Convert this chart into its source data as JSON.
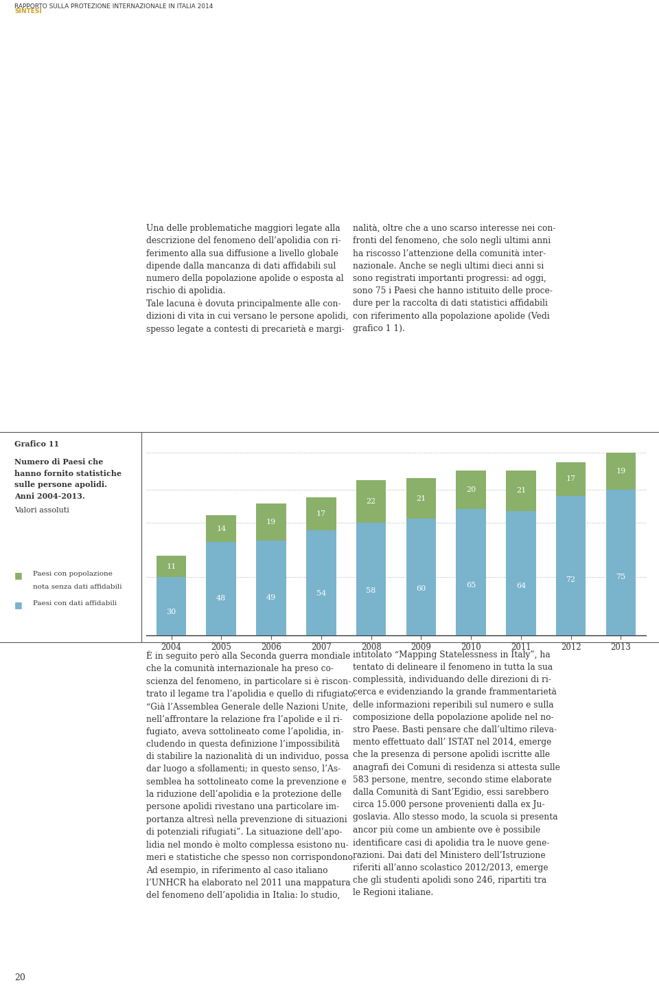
{
  "years": [
    2004,
    2005,
    2006,
    2007,
    2008,
    2009,
    2010,
    2011,
    2012,
    2013
  ],
  "blue_values": [
    30,
    48,
    49,
    54,
    58,
    60,
    65,
    64,
    72,
    75
  ],
  "green_values": [
    11,
    14,
    19,
    17,
    22,
    21,
    20,
    21,
    17,
    19
  ],
  "blue_color": "#7ab3cc",
  "green_color": "#8ab06a",
  "title": "Grafico 11",
  "subtitle_bold": "Numero di Paesi che\nhannofornito statistiche\nsulle persone apolidi.\nAnni 2004-2013.",
  "subtitle_normal": "Valori assoluti",
  "legend_label1a": "Paesi con popolazione",
  "legend_label1b": "nota senza dati affidabili",
  "legend_label2": "Paesi con dati affidabili",
  "header_line1": "RAPPORTO SULLA PROTEZIONE INTERNAZIONALE IN ITALIA 2014",
  "header_line2": "SINTESI",
  "header_color1": "#333333",
  "header_color2": "#c8a020",
  "dotted_line_color": "#aaaaaa",
  "axis_color": "#333333",
  "bg_color": "#ffffff",
  "text_color": "#333333",
  "bar_width": 0.6,
  "top_text_left": "Una delle problematiche maggiori legate alla\ndescrizione del fenomeno dell’apolidia con ri-\nferimento alla sua diffusione a livello globale\ndipende dalla mancanza di dati affidabili sul\nnumero della popolazione apolide o esposta al\nrischio di apolidia.\nTale lacuna è dovuta principalmente alle con-\ndizioni di vita in cui versano le persone apolidi,\nspesso legate a contesti di precarietà e margi-",
  "top_text_right": "nalità, oltre che a uno scarso interesse nei con-\nfronti del fenomeno, che solo negli ultimi anni\nha riscosso l’attenzione della comunità inter-\nnazionale. Anche se negli ultimi dieci anni si\nsono registrati importanti progressi: ad oggi,\nsono 75 i Paesi che hanno istituito delle proce-\ndure per la raccolta di dati statistici affidabili\ncon riferimento alla popolazione apolide (Vedi\ngrafico 1 1).",
  "bottom_text_left": "È in seguito però alla Seconda guerra mondiale\nche la comunità internazionale ha preso co-\nscienza del fenomeno, in particolare si è riscon-\ntrato il legame tra l’apolidia e quello di rifugiato.\n“Già l’Assemblea Generale delle Nazioni Unite,\nnell’affrontare la relazione fra l’apolide e il ri-\nfugiato, aveva sottolineato come l’apolidia, in-\ncludendo in questa definizione l’impossibilità\ndi stabilire la nazionalità di un individuo, possa\ndar luogo a sfollamenti; in questo senso, l’As-\nsemblea ha sottolineato come la prevenzione e\nla riduzione dell’apolidia e la protezione delle\npersone apolidi rivestano una particolare im-\nportanza altresì nella prevenzione di situazioni\ndi potenziali rifugiati”. La situazione dell’apo-\nlidia nel mondo è molto complessa esistono nu-\nmeri e statistiche che spesso non corrispondono.\nAd esempio, in riferimento al caso italiano\nl’UNHCR ha elaborato nel 2011 una mappatura\ndel fenomeno dell’apolidia in Italia: lo studio,",
  "bottom_text_right": "intitolato “Mapping Statelessness in Italy”, ha\ntentato di delineare il fenomeno in tutta la sua\ncomplessità, individuando delle direzioni di ri-\ncerca e evidenziando la grande frammentarietà\ndelle informazioni reperibili sul numero e sulla\ncomposizione della popolazione apolide nel no-\nstro Paese. Basti pensare che dall’ultimo rileva-\nmento effettuato dall’ ISTAT nel 2014, emerge\nche la presenza di persone apolidi iscritte alle\nanagrafi dei Comuni di residenza si attesta sulle\n583 persone, mentre, secondo stime elaborate\ndalla Comunità di Sant’Egidio, essi sarebbero\ncirca 15.000 persone provenienti dalla ex Ju-\ngoslavia. Allo stesso modo, la scuola si presenta\nancor più come un ambiente ove è possibile\nidentificare casi di apolidia tra le nuove gene-\nrazioni. Dai dati del Ministero dell’Istruzione\nriferiti all’anno scolastico 2012/2013, emerge\nche gli studenti apolidi sono 246, ripartiti tra\nle Regioni italiane.",
  "page_number": "20"
}
